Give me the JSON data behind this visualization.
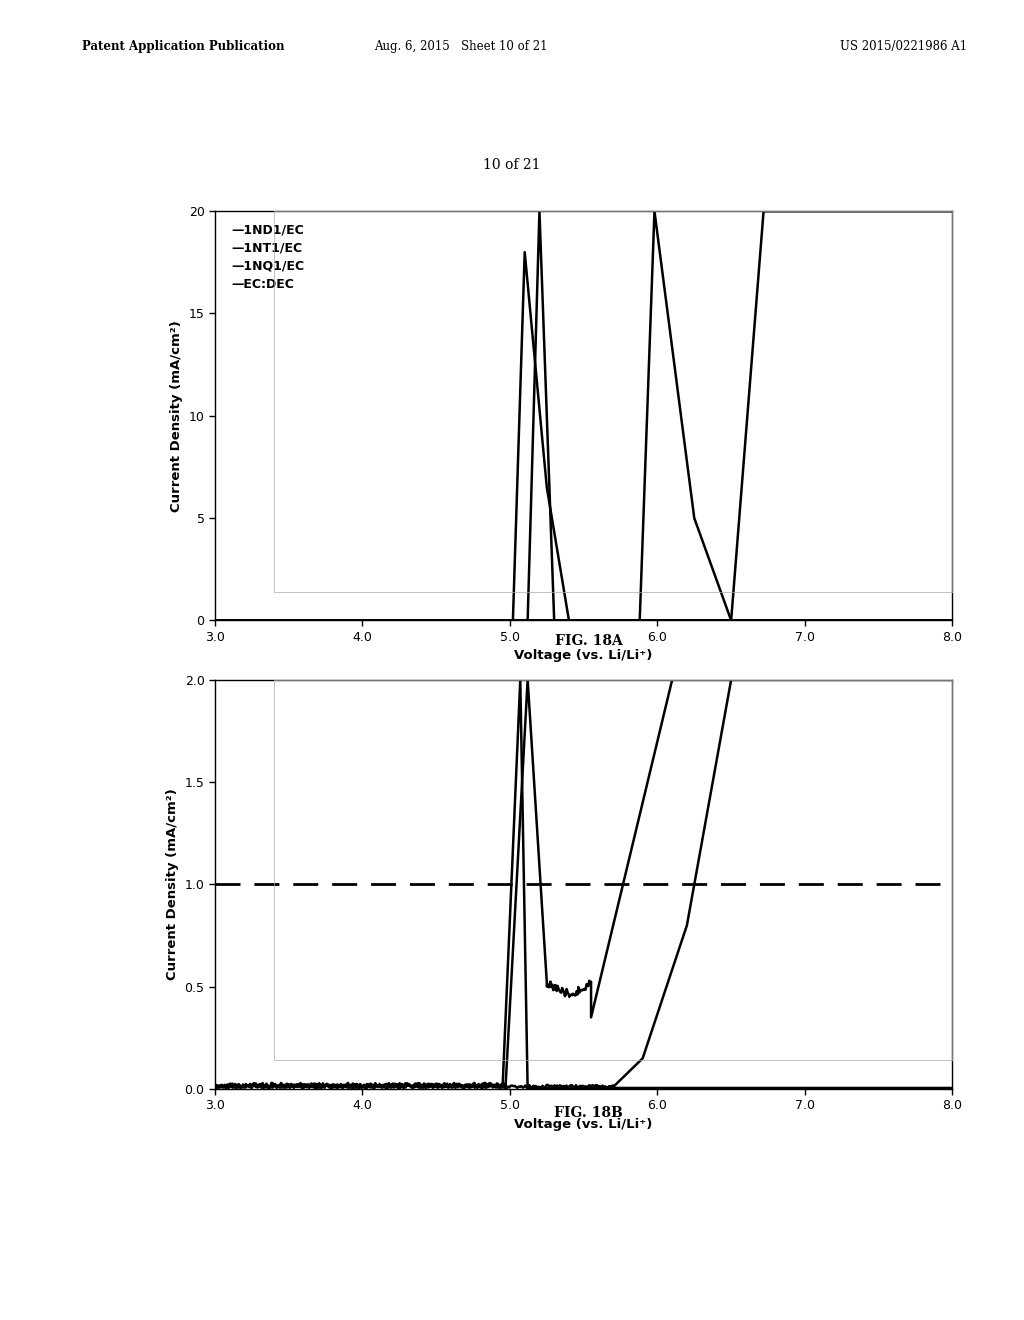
{
  "page_header_left": "Patent Application Publication",
  "page_header_mid": "Aug. 6, 2015   Sheet 10 of 21",
  "page_header_right": "US 2015/0221986 A1",
  "page_label": "10 of 21",
  "fig_a_label": "FIG. 18A",
  "fig_b_label": "FIG. 18B",
  "fig_a": {
    "xlim": [
      3.0,
      8.0
    ],
    "ylim": [
      0,
      20
    ],
    "xlabel": "Voltage (vs. Li/Li⁺)",
    "ylabel": "Current Density (mA/cm²)",
    "yticks": [
      0,
      5,
      10,
      15,
      20
    ],
    "xticks": [
      3.0,
      4.0,
      5.0,
      6.0,
      7.0,
      8.0
    ],
    "xtick_labels": [
      "3.0",
      "4.0",
      "5.0",
      "6.0",
      "7.0",
      "8.0"
    ],
    "legend": [
      "1ND1/EC",
      "1NT1/EC",
      "1NQ1/EC",
      "EC:DEC"
    ]
  },
  "fig_b": {
    "xlim": [
      3.0,
      8.0
    ],
    "ylim": [
      0.0,
      2.0
    ],
    "xlabel": "Voltage (vs. Li/Li⁺)",
    "ylabel": "Current Density (mA/cm²)",
    "yticks": [
      0.0,
      0.5,
      1.0,
      1.5,
      2.0
    ],
    "xticks": [
      3.0,
      4.0,
      5.0,
      6.0,
      7.0,
      8.0
    ],
    "xtick_labels": [
      "3.0",
      "4.0",
      "5.0",
      "6.0",
      "7.0",
      "8.0"
    ],
    "dashed_line_y": 1.0
  },
  "background_color": "#ffffff",
  "line_color": "#000000"
}
